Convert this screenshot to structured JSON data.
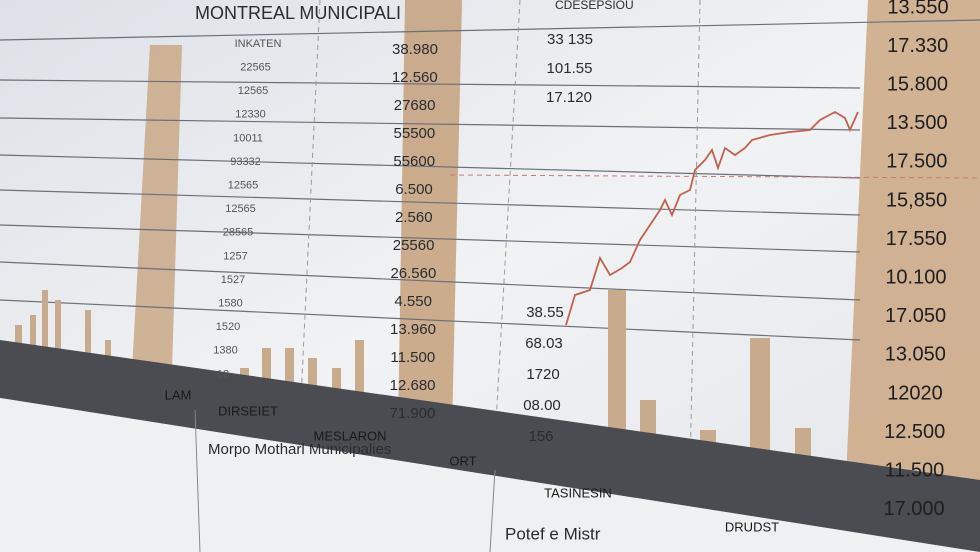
{
  "header": {
    "title": "MONTREAL MUNICIPALI",
    "subtitle": "CDESEPSIOU"
  },
  "right_column": [
    "13.550",
    "17.330",
    "15.800",
    "13.500",
    "17.500",
    "15,850",
    "17.550",
    "10.100",
    "17.050",
    "13.050",
    "12020",
    "12.500",
    "11.500",
    "17.000"
  ],
  "column_a": [
    "38.980",
    "12.560",
    "27680",
    "55500",
    "55600",
    "6.500",
    "2.560",
    "25560",
    "26.560",
    "4.550",
    "13.960",
    "11.500",
    "12.680",
    "71.900"
  ],
  "column_b": [
    "33 135",
    "101.55",
    "17.120"
  ],
  "column_c": [
    "38.55",
    "68.03",
    "1720",
    "08.00",
    "156"
  ],
  "column_small": [
    "INKATEN",
    "22565",
    "12565",
    "12330",
    "10011",
    "93332",
    "12565",
    "12565",
    "28565",
    "1257",
    "1527",
    "1580",
    "1520",
    "1380",
    "12"
  ],
  "footer_tabs": [
    "LAM",
    "DIRSEIET",
    "MESLARON",
    "ORT",
    "TASINESIN",
    "DRUDST"
  ],
  "bottom_text": [
    "Morpo Motharl Municipalies",
    "Potef e Mistr"
  ]
}
